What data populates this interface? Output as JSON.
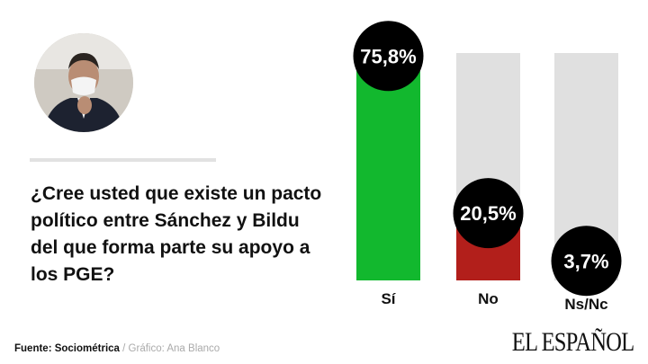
{
  "question": "¿Cree usted que existe un pacto político entre Sánchez y Bildu del que forma parte su apoyo a los PGE?",
  "footer": {
    "source": "Fuente: Sociométrica",
    "separator": " / ",
    "credit": "Gráfico: Ana Blanco"
  },
  "logo": "EL ESPAÑOL",
  "chart_data": {
    "type": "bar",
    "categories": [
      "Sí",
      "No",
      "Ns/Nc"
    ],
    "values": [
      75.8,
      20.5,
      3.7
    ],
    "data_labels": [
      "75,8%",
      "20,5%",
      "3,7%"
    ],
    "colors": [
      "#12b82e",
      "#b21f1b",
      "#dddddd"
    ],
    "track_color": "#e0e0e0",
    "label_bubble_color": "#000000",
    "ylim": [
      0,
      80
    ],
    "grid": false
  }
}
